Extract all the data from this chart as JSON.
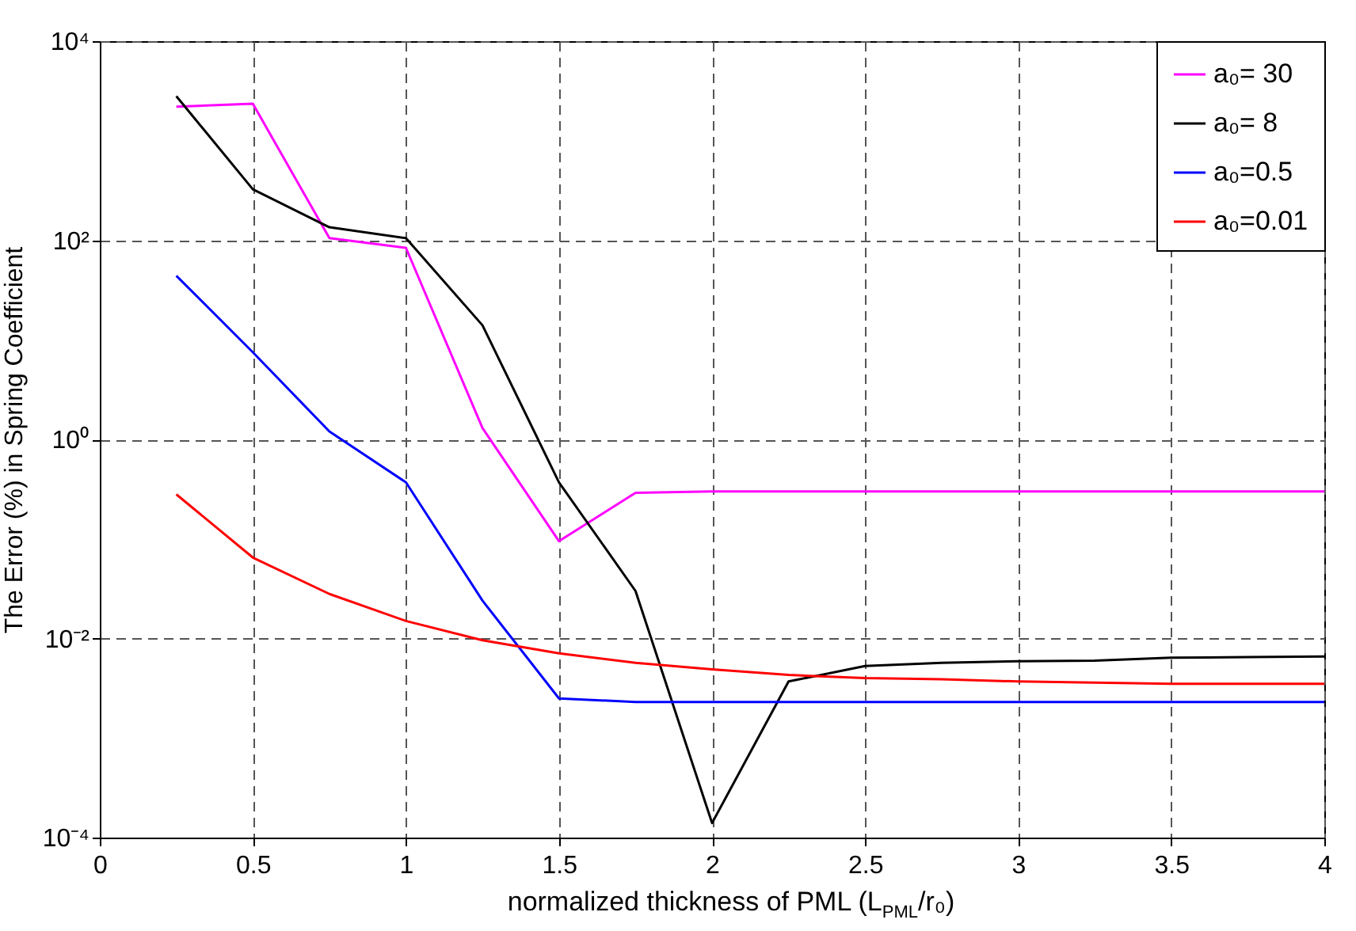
{
  "chart_data": {
    "type": "line",
    "xlabel": "normalized thickness of PML (L$_{PML}$/r₀)",
    "ylabel": "The Error (%) in Spring Coefficient",
    "x": [
      0.25,
      0.5,
      0.75,
      1,
      1.25,
      1.5,
      1.75,
      2,
      2.25,
      2.5,
      2.75,
      3,
      3.25,
      3.5,
      3.75,
      4
    ],
    "series": [
      {
        "name": "a₀=  30",
        "color": "#ff00ff",
        "values": [
          2200,
          2350,
          105,
          84,
          1.3,
          0.095,
          0.29,
          0.3,
          0.3,
          0.3,
          0.3,
          0.3,
          0.3,
          0.3,
          0.3,
          0.3
        ]
      },
      {
        "name": "a₀=   8",
        "color": "#000000",
        "values": [
          2800,
          325,
          135,
          105,
          14,
          0.37,
          0.03,
          0.00014,
          0.0037,
          0.0053,
          0.0057,
          0.0059,
          0.006,
          0.0064,
          0.0065,
          0.0066
        ]
      },
      {
        "name": "a₀=0.5",
        "color": "#0000ff",
        "values": [
          44,
          7.5,
          1.2,
          0.37,
          0.024,
          0.0025,
          0.0023,
          0.0023,
          0.0023,
          0.0023,
          0.0023,
          0.0023,
          0.0023,
          0.0023,
          0.0023,
          0.0023
        ]
      },
      {
        "name": "a₀=0.01",
        "color": "#ff0000",
        "values": [
          0.28,
          0.065,
          0.028,
          0.015,
          0.0096,
          0.0071,
          0.0057,
          0.0049,
          0.0043,
          0.004,
          0.0039,
          0.0037,
          0.0036,
          0.0035,
          0.0035,
          0.0035
        ]
      }
    ],
    "xlim": [
      0,
      4
    ],
    "xticks": [
      0,
      0.5,
      1,
      1.5,
      2,
      2.5,
      3,
      3.5,
      4
    ],
    "ylim": [
      0.0001,
      10000
    ],
    "yticks": [
      {
        "value": 0.0001,
        "label": "10⁻⁴"
      },
      {
        "value": 0.01,
        "label": "10⁻²"
      },
      {
        "value": 1,
        "label": "10⁰"
      },
      {
        "value": 100,
        "label": "10²"
      },
      {
        "value": 10000,
        "label": "10⁴"
      }
    ],
    "log": true,
    "grid": true,
    "legend": "top right",
    "line_style": "solid"
  }
}
